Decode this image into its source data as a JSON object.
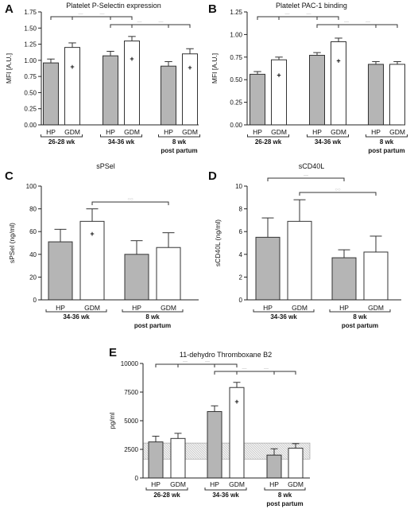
{
  "chart_data": [
    {
      "panel": "A",
      "type": "bar",
      "title": "Platelet P-Selectin expression",
      "ylabel": "MFI [A.U.]",
      "ylim": [
        0,
        1.75
      ],
      "yticks": [
        "0.00",
        "0.25",
        "0.50",
        "0.75",
        "1.00",
        "1.25",
        "1.50",
        "1.75"
      ],
      "categories": [
        "HP",
        "GDM",
        "HP",
        "GDM",
        "HP",
        "GDM"
      ],
      "groups": [
        {
          "label": "26-28 wk"
        },
        {
          "label": "34-36 wk"
        },
        {
          "label": "8 wk post partum"
        }
      ],
      "values": [
        0.96,
        1.2,
        1.07,
        1.3,
        0.91,
        1.1
      ],
      "errors": [
        0.06,
        0.07,
        0.07,
        0.07,
        0.07,
        0.08
      ],
      "markers": [
        null,
        0.9,
        null,
        1.02,
        null,
        0.89
      ],
      "marker_symbol": "+",
      "significance": [
        {
          "from": 0,
          "to": 2,
          "label": "—"
        },
        {
          "from": 2,
          "to": 4,
          "label": "—"
        },
        {
          "from": 1,
          "to": 3,
          "label": "—"
        },
        {
          "from": 3,
          "to": 5,
          "label": "—"
        }
      ]
    },
    {
      "panel": "B",
      "type": "bar",
      "title": "Platelet PAC-1 binding",
      "ylabel": "MFI [A.U.]",
      "ylim": [
        0,
        1.25
      ],
      "yticks": [
        "0.00",
        "0.25",
        "0.50",
        "0.75",
        "1.00",
        "1.25"
      ],
      "categories": [
        "HP",
        "GDM",
        "HP",
        "GDM",
        "HP",
        "GDM"
      ],
      "groups": [
        {
          "label": "26-28 wk"
        },
        {
          "label": "34-36 wk"
        },
        {
          "label": "8 wk post partum"
        }
      ],
      "values": [
        0.56,
        0.72,
        0.77,
        0.92,
        0.67,
        0.67
      ],
      "errors": [
        0.03,
        0.03,
        0.03,
        0.04,
        0.03,
        0.03
      ],
      "markers": [
        null,
        0.55,
        null,
        0.71,
        null,
        null
      ],
      "marker_symbol": "+",
      "significance": [
        {
          "from": 0,
          "to": 2,
          "label": "—"
        },
        {
          "from": 2,
          "to": 4,
          "label": "—"
        },
        {
          "from": 1,
          "to": 3,
          "label": "—"
        },
        {
          "from": 3,
          "to": 5,
          "label": "—"
        }
      ]
    },
    {
      "panel": "C",
      "type": "bar",
      "title": "sPSel",
      "ylabel": "sPSel (ng/ml)",
      "ylim": [
        0,
        100
      ],
      "yticks": [
        "0",
        "20",
        "40",
        "60",
        "80",
        "100"
      ],
      "categories": [
        "HP",
        "GDM",
        "HP",
        "GDM"
      ],
      "groups": [
        {
          "label": "34-36 wk"
        },
        {
          "label": "8 wk post partum"
        }
      ],
      "values": [
        51,
        69,
        40,
        46
      ],
      "errors": [
        11,
        11,
        12,
        13
      ],
      "markers": [
        null,
        58,
        null,
        null
      ],
      "marker_symbol": "+",
      "significance": [
        {
          "from": 1,
          "to": 3,
          "label": "○○"
        }
      ]
    },
    {
      "panel": "D",
      "type": "bar",
      "title": "sCD40L",
      "ylabel": "sCD40L (ng/ml)",
      "ylim": [
        0,
        10
      ],
      "yticks": [
        "0",
        "2",
        "4",
        "6",
        "8",
        "10"
      ],
      "categories": [
        "HP",
        "GDM",
        "HP",
        "GDM"
      ],
      "groups": [
        {
          "label": "34-36 wk"
        },
        {
          "label": "8 wk post partum"
        }
      ],
      "values": [
        5.5,
        6.9,
        3.7,
        4.2
      ],
      "errors": [
        1.7,
        1.9,
        0.7,
        1.4
      ],
      "markers": [
        null,
        null,
        null,
        null
      ],
      "marker_symbol": "+",
      "significance": [
        {
          "from": 0,
          "to": 2,
          "label": "—"
        },
        {
          "from": 1,
          "to": 3,
          "label": "○○"
        }
      ]
    },
    {
      "panel": "E",
      "type": "bar",
      "title": "11-dehydro Thromboxane B2",
      "ylabel": "pg/ml",
      "ylim": [
        0,
        10000
      ],
      "yticks": [
        "0",
        "2500",
        "5000",
        "7500",
        "10000"
      ],
      "categories": [
        "HP",
        "GDM",
        "HP",
        "GDM",
        "HP",
        "GDM"
      ],
      "groups": [
        {
          "label": "26-28 wk"
        },
        {
          "label": "34-36 wk"
        },
        {
          "label": "8 wk post partum"
        }
      ],
      "values": [
        3150,
        3450,
        5800,
        7900,
        2000,
        2600
      ],
      "errors": [
        500,
        450,
        500,
        450,
        550,
        400
      ],
      "markers": [
        null,
        null,
        null,
        6650,
        null,
        null
      ],
      "marker_symbol": "+",
      "reference_range": [
        1650,
        3050
      ],
      "significance": [
        {
          "from": 0,
          "to": 2,
          "label": "—"
        },
        {
          "from": 2,
          "to": 4,
          "label": "—"
        },
        {
          "from": 1,
          "to": 3,
          "label": "—"
        },
        {
          "from": 3,
          "to": 5,
          "label": "—"
        }
      ]
    }
  ]
}
